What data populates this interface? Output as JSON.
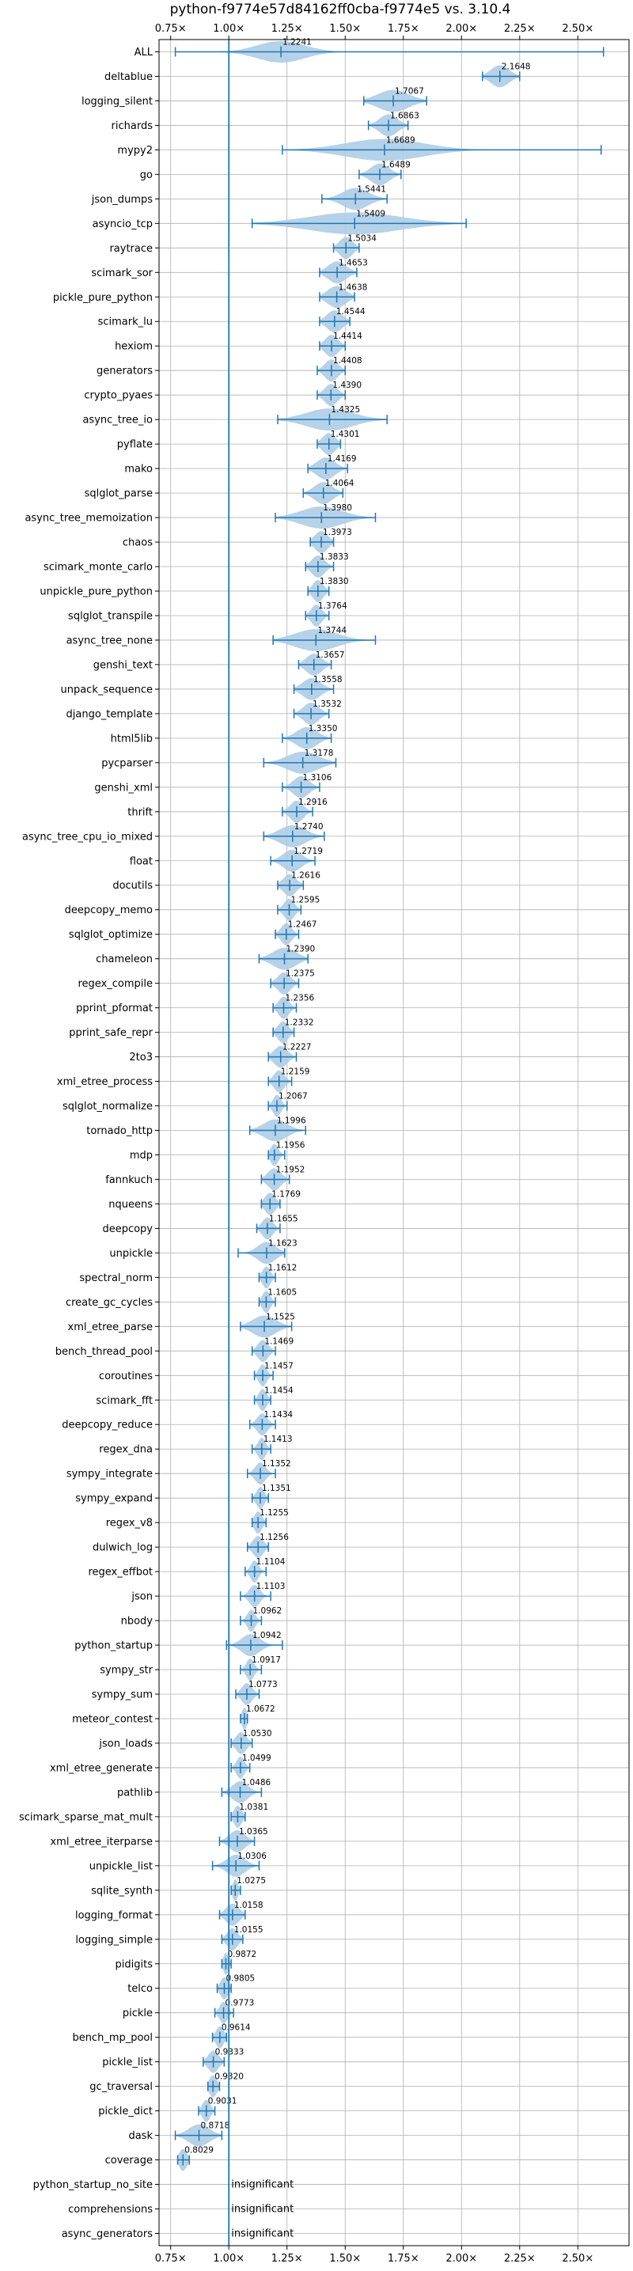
{
  "chart_data": {
    "type": "violin",
    "title": "python-f9774e57d84162ff0cba-f9774e5 vs. 3.10.4",
    "xlabel": "",
    "ylabel": "",
    "x_tick_values": [
      0.75,
      1.0,
      1.25,
      1.5,
      1.75,
      2.0,
      2.25,
      2.5
    ],
    "x_tick_labels": [
      "0.75×",
      "1.00×",
      "1.25×",
      "1.50×",
      "1.75×",
      "2.00×",
      "2.25×",
      "2.50×"
    ],
    "xlim": [
      0.7,
      2.72
    ],
    "reference_line": 1.0,
    "grid": true,
    "colors": {
      "violin": "#aecde6",
      "line": "#1f77b4",
      "grid": "#b0b0b0"
    },
    "insignificant_label": "insignificant",
    "benchmarks": [
      {
        "name": "ALL",
        "median": 1.2241,
        "min": 0.77,
        "max": 2.61,
        "spread": 0.18
      },
      {
        "name": "deltablue",
        "median": 2.1648,
        "min": 2.09,
        "max": 2.25,
        "spread": 0.07
      },
      {
        "name": "logging_silent",
        "median": 1.7067,
        "min": 1.58,
        "max": 1.85,
        "spread": 0.12
      },
      {
        "name": "richards",
        "median": 1.6863,
        "min": 1.6,
        "max": 1.77,
        "spread": 0.07
      },
      {
        "name": "mypy2",
        "median": 1.6689,
        "min": 1.23,
        "max": 2.6,
        "spread": 0.3
      },
      {
        "name": "go",
        "median": 1.6489,
        "min": 1.56,
        "max": 1.74,
        "spread": 0.07
      },
      {
        "name": "json_dumps",
        "median": 1.5441,
        "min": 1.4,
        "max": 1.68,
        "spread": 0.1
      },
      {
        "name": "asyncio_tcp",
        "median": 1.5409,
        "min": 1.1,
        "max": 2.02,
        "spread": 0.35
      },
      {
        "name": "raytrace",
        "median": 1.5034,
        "min": 1.45,
        "max": 1.56,
        "spread": 0.05
      },
      {
        "name": "scimark_sor",
        "median": 1.4653,
        "min": 1.39,
        "max": 1.55,
        "spread": 0.07
      },
      {
        "name": "pickle_pure_python",
        "median": 1.4638,
        "min": 1.39,
        "max": 1.54,
        "spread": 0.07
      },
      {
        "name": "scimark_lu",
        "median": 1.4544,
        "min": 1.39,
        "max": 1.52,
        "spread": 0.06
      },
      {
        "name": "hexiom",
        "median": 1.4414,
        "min": 1.39,
        "max": 1.5,
        "spread": 0.05
      },
      {
        "name": "generators",
        "median": 1.4408,
        "min": 1.38,
        "max": 1.5,
        "spread": 0.05
      },
      {
        "name": "crypto_pyaes",
        "median": 1.439,
        "min": 1.38,
        "max": 1.5,
        "spread": 0.05
      },
      {
        "name": "async_tree_io",
        "median": 1.4325,
        "min": 1.21,
        "max": 1.68,
        "spread": 0.18
      },
      {
        "name": "pyflate",
        "median": 1.4301,
        "min": 1.38,
        "max": 1.48,
        "spread": 0.05
      },
      {
        "name": "mako",
        "median": 1.4169,
        "min": 1.34,
        "max": 1.51,
        "spread": 0.07
      },
      {
        "name": "sqlglot_parse",
        "median": 1.4064,
        "min": 1.32,
        "max": 1.49,
        "spread": 0.07
      },
      {
        "name": "async_tree_memoization",
        "median": 1.398,
        "min": 1.2,
        "max": 1.63,
        "spread": 0.16
      },
      {
        "name": "chaos",
        "median": 1.3973,
        "min": 1.35,
        "max": 1.45,
        "spread": 0.05
      },
      {
        "name": "scimark_monte_carlo",
        "median": 1.3833,
        "min": 1.33,
        "max": 1.45,
        "spread": 0.05
      },
      {
        "name": "unpickle_pure_python",
        "median": 1.383,
        "min": 1.34,
        "max": 1.43,
        "spread": 0.04
      },
      {
        "name": "sqlglot_transpile",
        "median": 1.3764,
        "min": 1.33,
        "max": 1.43,
        "spread": 0.04
      },
      {
        "name": "async_tree_none",
        "median": 1.3744,
        "min": 1.19,
        "max": 1.63,
        "spread": 0.16
      },
      {
        "name": "genshi_text",
        "median": 1.3657,
        "min": 1.3,
        "max": 1.44,
        "spread": 0.06
      },
      {
        "name": "unpack_sequence",
        "median": 1.3558,
        "min": 1.28,
        "max": 1.45,
        "spread": 0.07
      },
      {
        "name": "django_template",
        "median": 1.3532,
        "min": 1.28,
        "max": 1.43,
        "spread": 0.06
      },
      {
        "name": "html5lib",
        "median": 1.335,
        "min": 1.23,
        "max": 1.44,
        "spread": 0.08
      },
      {
        "name": "pycparser",
        "median": 1.3178,
        "min": 1.15,
        "max": 1.46,
        "spread": 0.12
      },
      {
        "name": "genshi_xml",
        "median": 1.3106,
        "min": 1.23,
        "max": 1.39,
        "spread": 0.06
      },
      {
        "name": "thrift",
        "median": 1.2916,
        "min": 1.23,
        "max": 1.36,
        "spread": 0.05
      },
      {
        "name": "async_tree_cpu_io_mixed",
        "median": 1.274,
        "min": 1.15,
        "max": 1.41,
        "spread": 0.1
      },
      {
        "name": "float",
        "median": 1.2719,
        "min": 1.18,
        "max": 1.37,
        "spread": 0.07
      },
      {
        "name": "docutils",
        "median": 1.2616,
        "min": 1.21,
        "max": 1.32,
        "spread": 0.05
      },
      {
        "name": "deepcopy_memo",
        "median": 1.2595,
        "min": 1.21,
        "max": 1.31,
        "spread": 0.04
      },
      {
        "name": "sqlglot_optimize",
        "median": 1.2467,
        "min": 1.2,
        "max": 1.3,
        "spread": 0.04
      },
      {
        "name": "chameleon",
        "median": 1.239,
        "min": 1.13,
        "max": 1.34,
        "spread": 0.09
      },
      {
        "name": "regex_compile",
        "median": 1.2375,
        "min": 1.18,
        "max": 1.3,
        "spread": 0.05
      },
      {
        "name": "pprint_pformat",
        "median": 1.2356,
        "min": 1.19,
        "max": 1.29,
        "spread": 0.04
      },
      {
        "name": "pprint_safe_repr",
        "median": 1.2332,
        "min": 1.19,
        "max": 1.28,
        "spread": 0.04
      },
      {
        "name": "2to3",
        "median": 1.2227,
        "min": 1.17,
        "max": 1.29,
        "spread": 0.05
      },
      {
        "name": "xml_etree_process",
        "median": 1.2159,
        "min": 1.17,
        "max": 1.27,
        "spread": 0.04
      },
      {
        "name": "sqlglot_normalize",
        "median": 1.2067,
        "min": 1.17,
        "max": 1.25,
        "spread": 0.03
      },
      {
        "name": "tornado_http",
        "median": 1.1996,
        "min": 1.09,
        "max": 1.33,
        "spread": 0.09
      },
      {
        "name": "mdp",
        "median": 1.1956,
        "min": 1.17,
        "max": 1.24,
        "spread": 0.03
      },
      {
        "name": "fannkuch",
        "median": 1.1952,
        "min": 1.14,
        "max": 1.26,
        "spread": 0.05
      },
      {
        "name": "nqueens",
        "median": 1.1769,
        "min": 1.14,
        "max": 1.22,
        "spread": 0.04
      },
      {
        "name": "deepcopy",
        "median": 1.1655,
        "min": 1.12,
        "max": 1.22,
        "spread": 0.04
      },
      {
        "name": "unpickle",
        "median": 1.1623,
        "min": 1.04,
        "max": 1.24,
        "spread": 0.07
      },
      {
        "name": "spectral_norm",
        "median": 1.1612,
        "min": 1.13,
        "max": 1.2,
        "spread": 0.03
      },
      {
        "name": "create_gc_cycles",
        "median": 1.1605,
        "min": 1.13,
        "max": 1.2,
        "spread": 0.03
      },
      {
        "name": "xml_etree_parse",
        "median": 1.1525,
        "min": 1.05,
        "max": 1.27,
        "spread": 0.09
      },
      {
        "name": "bench_thread_pool",
        "median": 1.1469,
        "min": 1.1,
        "max": 1.2,
        "spread": 0.04
      },
      {
        "name": "coroutines",
        "median": 1.1457,
        "min": 1.11,
        "max": 1.19,
        "spread": 0.03
      },
      {
        "name": "scimark_fft",
        "median": 1.1454,
        "min": 1.11,
        "max": 1.18,
        "spread": 0.03
      },
      {
        "name": "deepcopy_reduce",
        "median": 1.1434,
        "min": 1.09,
        "max": 1.2,
        "spread": 0.04
      },
      {
        "name": "regex_dna",
        "median": 1.1413,
        "min": 1.1,
        "max": 1.18,
        "spread": 0.03
      },
      {
        "name": "sympy_integrate",
        "median": 1.1352,
        "min": 1.08,
        "max": 1.2,
        "spread": 0.04
      },
      {
        "name": "sympy_expand",
        "median": 1.1351,
        "min": 1.1,
        "max": 1.17,
        "spread": 0.03
      },
      {
        "name": "regex_v8",
        "median": 1.1255,
        "min": 1.1,
        "max": 1.16,
        "spread": 0.03
      },
      {
        "name": "dulwich_log",
        "median": 1.1256,
        "min": 1.08,
        "max": 1.17,
        "spread": 0.04
      },
      {
        "name": "regex_effbot",
        "median": 1.1104,
        "min": 1.07,
        "max": 1.16,
        "spread": 0.03
      },
      {
        "name": "json",
        "median": 1.1103,
        "min": 1.05,
        "max": 1.18,
        "spread": 0.04
      },
      {
        "name": "nbody",
        "median": 1.0962,
        "min": 1.05,
        "max": 1.14,
        "spread": 0.03
      },
      {
        "name": "python_startup",
        "median": 1.0942,
        "min": 0.99,
        "max": 1.23,
        "spread": 0.07
      },
      {
        "name": "sympy_str",
        "median": 1.0917,
        "min": 1.05,
        "max": 1.14,
        "spread": 0.03
      },
      {
        "name": "sympy_sum",
        "median": 1.0773,
        "min": 1.03,
        "max": 1.13,
        "spread": 0.04
      },
      {
        "name": "meteor_contest",
        "median": 1.0672,
        "min": 1.05,
        "max": 1.08,
        "spread": 0.02
      },
      {
        "name": "json_loads",
        "median": 1.053,
        "min": 1.01,
        "max": 1.1,
        "spread": 0.04
      },
      {
        "name": "xml_etree_generate",
        "median": 1.0499,
        "min": 1.01,
        "max": 1.09,
        "spread": 0.03
      },
      {
        "name": "pathlib",
        "median": 1.0486,
        "min": 0.97,
        "max": 1.14,
        "spread": 0.06
      },
      {
        "name": "scimark_sparse_mat_mult",
        "median": 1.0381,
        "min": 1.01,
        "max": 1.07,
        "spread": 0.03
      },
      {
        "name": "xml_etree_iterparse",
        "median": 1.0365,
        "min": 0.96,
        "max": 1.11,
        "spread": 0.06
      },
      {
        "name": "unpickle_list",
        "median": 1.0306,
        "min": 0.93,
        "max": 1.13,
        "spread": 0.07
      },
      {
        "name": "sqlite_synth",
        "median": 1.0275,
        "min": 1.01,
        "max": 1.05,
        "spread": 0.02
      },
      {
        "name": "logging_format",
        "median": 1.0158,
        "min": 0.96,
        "max": 1.07,
        "spread": 0.05
      },
      {
        "name": "logging_simple",
        "median": 1.0155,
        "min": 0.97,
        "max": 1.06,
        "spread": 0.04
      },
      {
        "name": "pidigits",
        "median": 0.9872,
        "min": 0.97,
        "max": 1.01,
        "spread": 0.02
      },
      {
        "name": "telco",
        "median": 0.9805,
        "min": 0.95,
        "max": 1.01,
        "spread": 0.03
      },
      {
        "name": "pickle",
        "median": 0.9773,
        "min": 0.94,
        "max": 1.02,
        "spread": 0.03
      },
      {
        "name": "bench_mp_pool",
        "median": 0.9614,
        "min": 0.93,
        "max": 0.99,
        "spread": 0.03
      },
      {
        "name": "pickle_list",
        "median": 0.9333,
        "min": 0.89,
        "max": 0.98,
        "spread": 0.04
      },
      {
        "name": "gc_traversal",
        "median": 0.932,
        "min": 0.91,
        "max": 0.96,
        "spread": 0.03
      },
      {
        "name": "pickle_dict",
        "median": 0.9031,
        "min": 0.87,
        "max": 0.94,
        "spread": 0.03
      },
      {
        "name": "dask",
        "median": 0.8718,
        "min": 0.77,
        "max": 0.97,
        "spread": 0.08
      },
      {
        "name": "coverage",
        "median": 0.8029,
        "min": 0.78,
        "max": 0.83,
        "spread": 0.03
      },
      {
        "name": "python_startup_no_site",
        "insignificant": true
      },
      {
        "name": "comprehensions",
        "insignificant": true
      },
      {
        "name": "async_generators",
        "insignificant": true
      }
    ]
  }
}
